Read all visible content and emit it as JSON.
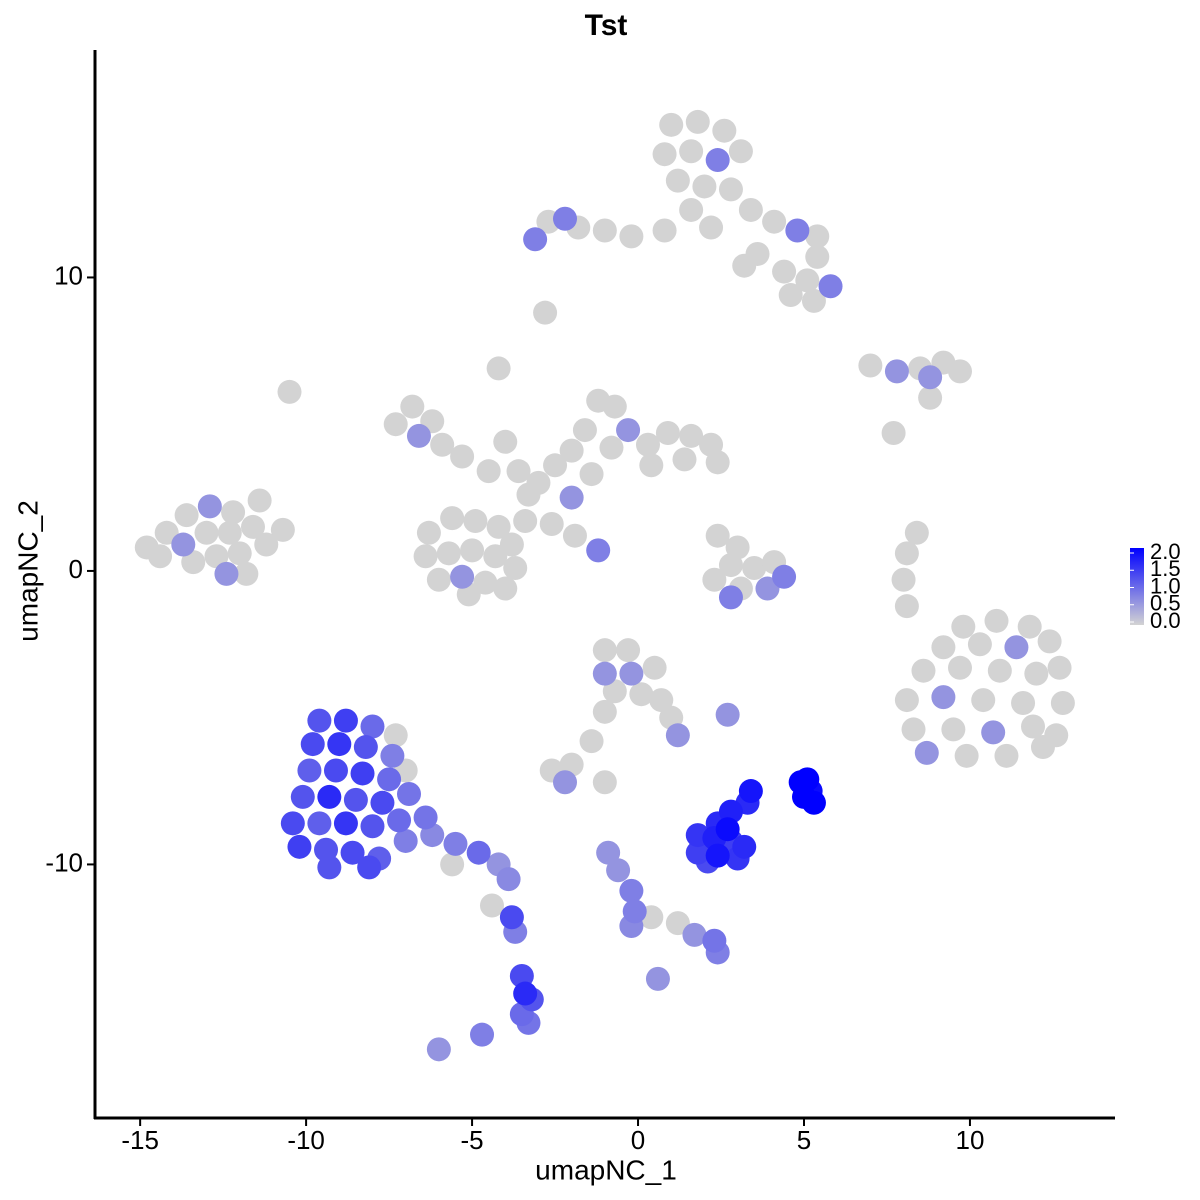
{
  "chart_data": {
    "type": "scatter",
    "title": "Tst",
    "xlabel": "umapNC_1",
    "ylabel": "umapNC_2",
    "xlim": [
      -16.36,
      14.37
    ],
    "ylim": [
      -18.64,
      17.75
    ],
    "xticks": [
      -15,
      -10,
      -5,
      0,
      5,
      10
    ],
    "yticks": [
      -10,
      0,
      10
    ],
    "colors": [
      "#d3d3d3",
      "#0000ff"
    ],
    "color_lim": [
      0,
      2
    ],
    "color_ticks": [
      {
        "value": 0,
        "label": "0.0"
      },
      {
        "value": 0.5,
        "label": "0.5"
      },
      {
        "value": 1,
        "label": "1.0"
      },
      {
        "value": 1.5,
        "label": "1.5"
      },
      {
        "value": 2,
        "label": "2.0"
      }
    ],
    "x": [
      1.0,
      1.8,
      2.6,
      3.1,
      0.8,
      1.6,
      2.4,
      1.2,
      2.0,
      2.8,
      3.4,
      4.1,
      4.8,
      5.4,
      1.6,
      2.2,
      0.8,
      -0.2,
      -1.0,
      -1.8,
      -2.7,
      -3.1,
      -2.2,
      3.6,
      4.4,
      5.1,
      5.8,
      5.3,
      4.6,
      3.2,
      -2.8,
      5.4,
      -6.8,
      -7.3,
      -6.2,
      -6.6,
      -5.9,
      -5.3,
      -4.5,
      -4.2,
      -4.0,
      -3.6,
      -3.3,
      -3.0,
      -2.5,
      -2.0,
      -1.6,
      -1.2,
      -0.7,
      -0.3,
      -0.8,
      0.3,
      0.9,
      1.6,
      2.2,
      2.4,
      1.4,
      0.4,
      -1.4,
      -2.0,
      -2.6,
      -1.9,
      -1.2,
      -3.4,
      -6.3,
      -5.6,
      -4.9,
      -4.2,
      -3.8,
      -6.4,
      -5.7,
      -5.0,
      -4.3,
      -3.7,
      -6.0,
      -5.3,
      -4.6,
      -4.0,
      -5.1,
      -10.5,
      -14.8,
      -14.2,
      -13.6,
      -12.9,
      -12.2,
      -11.4,
      -14.4,
      -13.7,
      -13.0,
      -12.3,
      -11.6,
      -10.7,
      -13.4,
      -12.7,
      -12.0,
      -11.2,
      -12.4,
      -11.8,
      2.4,
      3.0,
      2.8,
      3.5,
      2.3,
      3.1,
      3.9,
      4.4,
      2.8,
      4.1,
      7.0,
      7.8,
      8.5,
      9.2,
      9.7,
      8.8,
      8.8,
      7.7,
      8.4,
      8.1,
      8.0,
      8.1,
      9.8,
      10.8,
      11.8,
      12.4,
      9.2,
      10.3,
      11.4,
      12.7,
      8.6,
      9.7,
      10.9,
      12.0,
      8.1,
      9.2,
      10.4,
      11.6,
      12.8,
      8.3,
      9.5,
      10.7,
      11.9,
      12.6,
      8.7,
      9.9,
      11.1,
      12.2,
      -1.0,
      -0.3,
      -1.0,
      -0.2,
      0.5,
      -0.7,
      0.1,
      0.7,
      1.0,
      1.2,
      -1.0,
      -1.4,
      -2.0,
      -2.6,
      -2.2,
      -1.0,
      2.7,
      -9.6,
      -8.8,
      -8.0,
      -7.3,
      -9.8,
      -9.0,
      -8.2,
      -7.4,
      -9.9,
      -9.1,
      -8.3,
      -7.5,
      -7.0,
      -10.1,
      -9.3,
      -8.5,
      -7.7,
      -6.9,
      -10.4,
      -9.6,
      -8.8,
      -8.0,
      -7.2,
      -6.4,
      -10.2,
      -9.4,
      -8.6,
      -7.8,
      -7.0,
      -6.2,
      -5.5,
      -4.8,
      -4.2,
      -3.9,
      -5.6,
      -4.4,
      -3.8,
      -3.7,
      -3.5,
      -3.4,
      -3.2,
      -3.5,
      -3.3,
      -4.7,
      -6.0,
      -9.3,
      -8.1,
      -0.9,
      -0.6,
      -0.2,
      -0.1,
      0.4,
      1.2,
      1.7,
      2.3,
      2.4,
      -0.2,
      0.6,
      1.8,
      2.3,
      2.8,
      3.2,
      1.8,
      2.4,
      3.0,
      2.4,
      2.8,
      2.1,
      2.7,
      3.4,
      3.3,
      4.9,
      5.1,
      5.2,
      5.0,
      5.3
    ],
    "y": [
      15.2,
      15.3,
      15.0,
      14.3,
      14.2,
      14.3,
      14.0,
      13.3,
      13.1,
      13.0,
      12.3,
      11.9,
      11.6,
      11.4,
      12.3,
      11.7,
      11.6,
      11.4,
      11.6,
      11.7,
      11.9,
      11.3,
      12.0,
      10.8,
      10.2,
      9.9,
      9.7,
      9.2,
      9.4,
      10.4,
      8.8,
      10.7,
      5.6,
      5.0,
      5.1,
      4.6,
      4.3,
      3.9,
      3.4,
      6.9,
      4.4,
      3.4,
      2.6,
      3.0,
      3.6,
      4.1,
      4.8,
      5.8,
      5.6,
      4.8,
      4.2,
      4.3,
      4.7,
      4.6,
      4.3,
      3.7,
      3.8,
      3.6,
      3.3,
      2.5,
      1.6,
      1.2,
      0.7,
      1.7,
      1.3,
      1.8,
      1.7,
      1.5,
      0.9,
      0.5,
      0.6,
      0.7,
      0.5,
      0.1,
      -0.3,
      -0.2,
      -0.4,
      -0.6,
      -0.8,
      6.1,
      0.8,
      1.3,
      1.9,
      2.2,
      2.0,
      2.4,
      0.5,
      0.9,
      1.3,
      1.3,
      1.5,
      1.4,
      0.3,
      0.5,
      0.6,
      0.9,
      -0.1,
      -0.1,
      1.2,
      0.8,
      0.2,
      0.1,
      -0.3,
      -0.6,
      -0.6,
      -0.2,
      -0.9,
      0.3,
      7.0,
      6.8,
      6.9,
      7.1,
      6.8,
      6.6,
      5.9,
      4.7,
      1.3,
      0.6,
      -0.3,
      -1.2,
      -1.9,
      -1.7,
      -1.9,
      -2.4,
      -2.6,
      -2.5,
      -2.6,
      -3.3,
      -3.4,
      -3.3,
      -3.4,
      -3.5,
      -4.4,
      -4.3,
      -4.4,
      -4.5,
      -4.5,
      -5.4,
      -5.4,
      -5.5,
      -5.3,
      -5.6,
      -6.2,
      -6.3,
      -6.3,
      -6.0,
      -2.7,
      -2.7,
      -3.5,
      -3.5,
      -3.3,
      -4.1,
      -4.2,
      -4.4,
      -5.0,
      -5.6,
      -4.8,
      -5.8,
      -6.6,
      -6.8,
      -7.2,
      -7.2,
      -4.9,
      -5.1,
      -5.1,
      -5.3,
      -5.6,
      -5.9,
      -5.9,
      -6.0,
      -6.3,
      -6.8,
      -6.8,
      -6.9,
      -7.1,
      -6.8,
      -7.7,
      -7.7,
      -7.8,
      -7.9,
      -7.6,
      -8.6,
      -8.6,
      -8.6,
      -8.7,
      -8.5,
      -8.4,
      -9.4,
      -9.5,
      -9.6,
      -9.8,
      -9.2,
      -9.0,
      -9.3,
      -9.6,
      -10.0,
      -10.5,
      -10.0,
      -11.4,
      -11.8,
      -12.3,
      -13.8,
      -14.4,
      -14.6,
      -15.1,
      -15.4,
      -15.8,
      -16.3,
      -10.1,
      -10.1,
      -9.6,
      -10.2,
      -10.9,
      -11.6,
      -11.8,
      -12.0,
      -12.4,
      -12.6,
      -13.0,
      -12.1,
      -13.9,
      -9.0,
      -9.1,
      -9.2,
      -9.4,
      -9.6,
      -9.7,
      -9.8,
      -8.6,
      -8.2,
      -9.9,
      -8.8,
      -7.5,
      -7.9,
      -7.2,
      -7.1,
      -7.5,
      -7.7,
      -7.9
    ],
    "values": [
      0,
      0,
      0,
      0,
      0,
      0,
      0.8,
      0,
      0,
      0,
      0,
      0,
      0.8,
      0,
      0,
      0,
      0,
      0,
      0,
      0,
      0,
      0.8,
      0.8,
      0,
      0,
      0,
      0.8,
      0,
      0,
      0,
      0,
      0,
      0,
      0,
      0,
      0.6,
      0,
      0,
      0,
      0,
      0,
      0,
      0,
      0,
      0,
      0,
      0,
      0,
      0,
      0.6,
      0,
      0,
      0,
      0,
      0,
      0,
      0,
      0,
      0,
      0.6,
      0,
      0,
      0.8,
      0,
      0,
      0,
      0,
      0,
      0,
      0,
      0,
      0,
      0,
      0,
      0,
      0.6,
      0,
      0,
      0,
      0,
      0,
      0,
      0,
      0.6,
      0,
      0,
      0,
      0.6,
      0,
      0,
      0,
      0,
      0,
      0,
      0,
      0,
      0.6,
      0,
      0,
      0,
      0,
      0,
      0,
      0,
      0.6,
      0.8,
      0.8,
      0,
      0,
      0.6,
      0,
      0,
      0,
      0.6,
      0,
      0,
      0,
      0,
      0,
      0,
      0,
      0,
      0,
      0,
      0,
      0,
      0.6,
      0,
      0,
      0,
      0,
      0,
      0,
      0.6,
      0,
      0,
      0,
      0,
      0,
      0.6,
      0,
      0,
      0.6,
      0,
      0,
      0,
      0,
      0,
      0.6,
      0.6,
      0,
      0,
      0,
      0,
      0,
      0.6,
      0,
      0,
      0,
      0,
      0.6,
      0,
      0.6,
      1.2,
      1.4,
      1.0,
      0,
      1.3,
      1.5,
      1.2,
      0.8,
      1.1,
      1.3,
      1.4,
      1.0,
      0,
      1.2,
      1.6,
      1.2,
      1.3,
      0.9,
      1.3,
      1.1,
      1.5,
      1.2,
      1.0,
      0.9,
      1.4,
      1.2,
      1.3,
      1.1,
      0.8,
      0.7,
      0.8,
      1.0,
      0.6,
      0.7,
      0,
      0,
      1.3,
      0.8,
      1.3,
      1.6,
      1.2,
      1.0,
      0.9,
      0.8,
      0.6,
      1.2,
      1.3,
      0.6,
      0.6,
      0.8,
      0.8,
      0,
      0,
      0.6,
      0.9,
      0.8,
      0.7,
      0.6,
      1.5,
      1.7,
      1.4,
      1.6,
      1.4,
      1.8,
      1.5,
      1.6,
      1.7,
      1.3,
      1.9,
      1.8,
      1.6,
      2.0,
      2.0,
      1.9,
      2.0,
      2.0
    ]
  }
}
